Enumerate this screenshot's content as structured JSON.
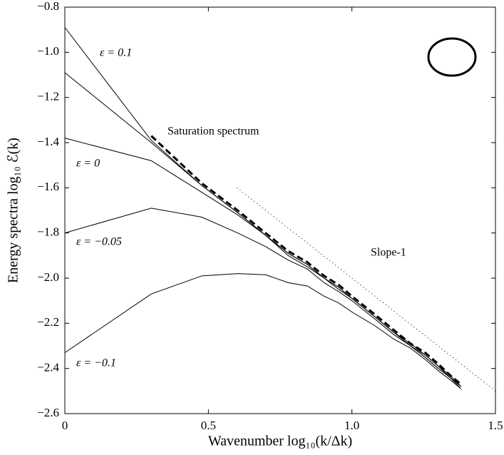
{
  "chart_data": {
    "type": "line",
    "x_label": "Wavenumber log₁₀(k/Δk)",
    "y_label": "Energy spectra log₁₀ ℰ(k)",
    "x": [
      0,
      0.301,
      0.477,
      0.602,
      0.699,
      0.778,
      0.845,
      0.903,
      0.954,
      1.0,
      1.079,
      1.146,
      1.204,
      1.255,
      1.301,
      1.342,
      1.38
    ],
    "series": [
      {
        "name": "ε = 0.1",
        "color": "#000000",
        "style": "solid",
        "values": [
          -0.89,
          -1.39,
          -1.59,
          -1.71,
          -1.81,
          -1.89,
          -1.94,
          -2.0,
          -2.04,
          -2.09,
          -2.17,
          -2.24,
          -2.29,
          -2.34,
          -2.39,
          -2.43,
          -2.48
        ]
      },
      {
        "color": "#000000",
        "style": "solid",
        "values": [
          -1.09,
          -1.4,
          -1.59,
          -1.71,
          -1.81,
          -1.89,
          -1.94,
          -2.0,
          -2.04,
          -2.09,
          -2.17,
          -2.24,
          -2.3,
          -2.34,
          -2.39,
          -2.44,
          -2.48
        ]
      },
      {
        "name": "ε = 0",
        "color": "#000000",
        "style": "solid",
        "values": [
          -1.38,
          -1.48,
          -1.62,
          -1.72,
          -1.81,
          -1.9,
          -1.95,
          -2.0,
          -2.05,
          -2.09,
          -2.17,
          -2.24,
          -2.3,
          -2.35,
          -2.4,
          -2.44,
          -2.48
        ]
      },
      {
        "name": "ε = −0.05",
        "color": "#000000",
        "style": "solid",
        "values": [
          -1.8,
          -1.69,
          -1.73,
          -1.8,
          -1.86,
          -1.92,
          -1.96,
          -2.02,
          -2.06,
          -2.1,
          -2.18,
          -2.25,
          -2.3,
          -2.35,
          -2.4,
          -2.44,
          -2.49
        ]
      },
      {
        "name": "ε = −0.1",
        "color": "#000000",
        "style": "solid",
        "values": [
          -2.33,
          -2.07,
          -1.99,
          -1.98,
          -1.985,
          -2.02,
          -2.035,
          -2.08,
          -2.11,
          -2.15,
          -2.21,
          -2.27,
          -2.31,
          -2.36,
          -2.41,
          -2.45,
          -2.49
        ]
      },
      {
        "name": "Saturation spectrum",
        "color": "#000000",
        "style": "dashed",
        "values": [
          null,
          -1.37,
          -1.58,
          -1.7,
          -1.8,
          -1.88,
          -1.93,
          -1.99,
          -2.03,
          -2.08,
          -2.16,
          -2.23,
          -2.29,
          -2.33,
          -2.38,
          -2.43,
          -2.47
        ]
      },
      {
        "name": "Slope-1",
        "color": "#000000",
        "style": "dotted",
        "x": [
          0.6,
          1.5
        ],
        "values": [
          -1.6,
          -2.5
        ]
      }
    ],
    "xlim": [
      0,
      1.5
    ],
    "ylim": [
      -2.6,
      -0.8
    ],
    "xticks": [
      0,
      0.5,
      {
        "value": 1,
        "label": "1.0"
      },
      1.5
    ],
    "yticks": [
      {
        "value": -0.8,
        "label": "−0.8"
      },
      {
        "value": -1.0,
        "label": "−1.0"
      },
      {
        "value": -1.2,
        "label": "−1.2"
      },
      {
        "value": -1.4,
        "label": "−1.4"
      },
      {
        "value": -1.6,
        "label": "−1.6"
      },
      {
        "value": -1.8,
        "label": "−1.8"
      },
      {
        "value": -2.0,
        "label": "−2.0"
      },
      {
        "value": -2.2,
        "label": "−2.2"
      },
      {
        "value": -2.4,
        "label": "−2.4"
      },
      {
        "value": -2.6,
        "label": "−2.6"
      }
    ],
    "grid": false
  }
}
